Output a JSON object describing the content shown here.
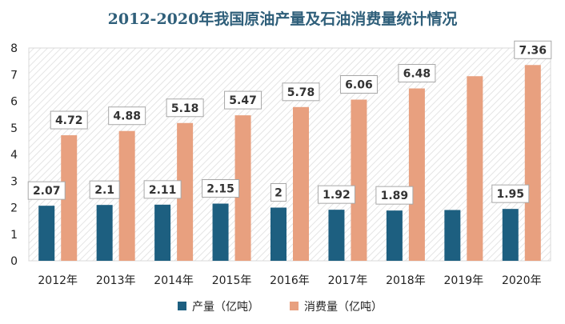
{
  "chart_data": {
    "type": "bar",
    "title": "2012-2020年我国原油产量及石油消费量统计情况",
    "categories": [
      "2012年",
      "2013年",
      "2014年",
      "2015年",
      "2016年",
      "2017年",
      "2018年",
      "2019年",
      "2020年"
    ],
    "series": [
      {
        "name": "产量（亿吨）",
        "color": "#1d5f80",
        "values": [
          2.07,
          2.1,
          2.11,
          2.15,
          2.0,
          1.92,
          1.89,
          1.91,
          1.95
        ],
        "labels": [
          "2.07",
          "2.1",
          "2.11",
          "2.15",
          "2",
          "1.92",
          "1.89",
          null,
          "1.95"
        ]
      },
      {
        "name": "消费量（亿吨）",
        "color": "#e8a07f",
        "values": [
          4.72,
          4.88,
          5.18,
          5.47,
          5.78,
          6.06,
          6.48,
          6.94,
          7.36
        ],
        "labels": [
          "4.72",
          "4.88",
          "5.18",
          "5.47",
          "5.78",
          "6.06",
          "6.48",
          null,
          "7.36"
        ]
      }
    ],
    "ylim": [
      0,
      8
    ],
    "yticks": [
      "0",
      "1",
      "2",
      "3",
      "4",
      "5",
      "6",
      "7",
      "8"
    ],
    "legend_position": "bottom",
    "grid": false,
    "plot_background": "diagonal-hatch"
  }
}
